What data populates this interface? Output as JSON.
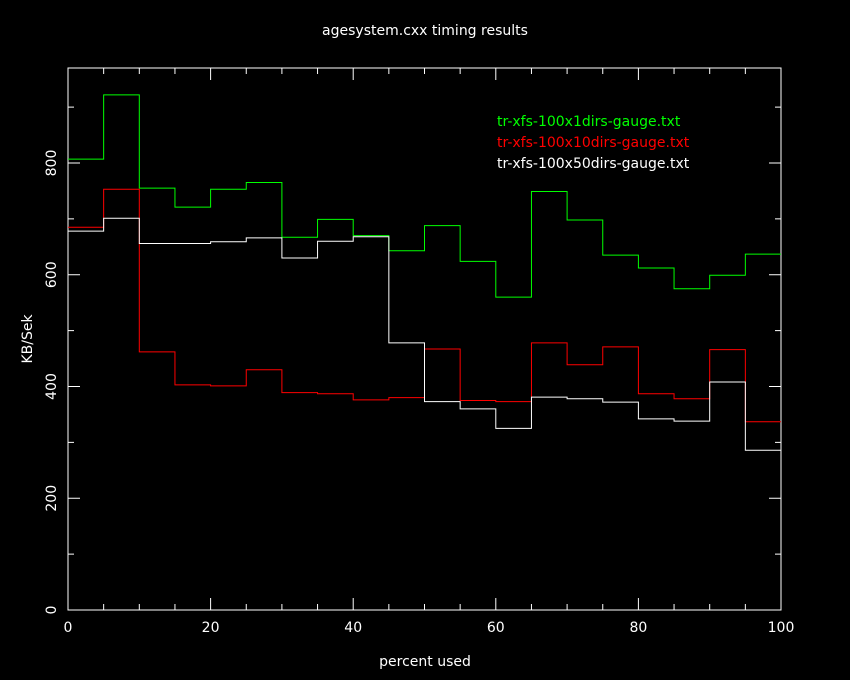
{
  "chart_data": {
    "type": "line",
    "step": true,
    "title": "agesystem.cxx timing results",
    "xlabel": "percent used",
    "ylabel": "KB/Sek",
    "xlim": [
      0,
      100
    ],
    "ylim": [
      0,
      970
    ],
    "x_ticks": [
      0,
      20,
      40,
      60,
      80,
      100
    ],
    "y_ticks": [
      0,
      200,
      400,
      600,
      800
    ],
    "x_tick_labels": [
      "0",
      "20",
      "40",
      "60",
      "80",
      "100"
    ],
    "y_tick_labels": [
      "0",
      "200",
      "400",
      "600",
      "800"
    ],
    "grid": false,
    "legend_position": "top-right",
    "background": "#000000",
    "axis_color": "#ffffff",
    "bin_edges": [
      0,
      5,
      10,
      15,
      20,
      25,
      30,
      35,
      40,
      45,
      50,
      55,
      60,
      65,
      70,
      75,
      80,
      85,
      90,
      95,
      100
    ],
    "series": [
      {
        "name": "tr-xfs-100x1dirs-gauge.txt",
        "color": "#00ff00",
        "values": [
          807,
          922,
          755,
          721,
          753,
          765,
          667,
          699,
          670,
          643,
          688,
          624,
          560,
          749,
          698,
          635,
          612,
          575,
          599,
          637
        ]
      },
      {
        "name": "tr-xfs-100x10dirs-gauge.txt",
        "color": "#ff0000",
        "values": [
          685,
          753,
          462,
          403,
          401,
          430,
          389,
          387,
          376,
          380,
          467,
          375,
          373,
          478,
          439,
          471,
          387,
          378,
          466,
          337
        ]
      },
      {
        "name": "tr-xfs-100x50dirs-gauge.txt",
        "color": "#ffffff",
        "values": [
          678,
          701,
          656,
          656,
          659,
          666,
          630,
          660,
          668,
          478,
          373,
          360,
          325,
          381,
          378,
          372,
          342,
          338,
          408,
          286
        ]
      }
    ]
  }
}
